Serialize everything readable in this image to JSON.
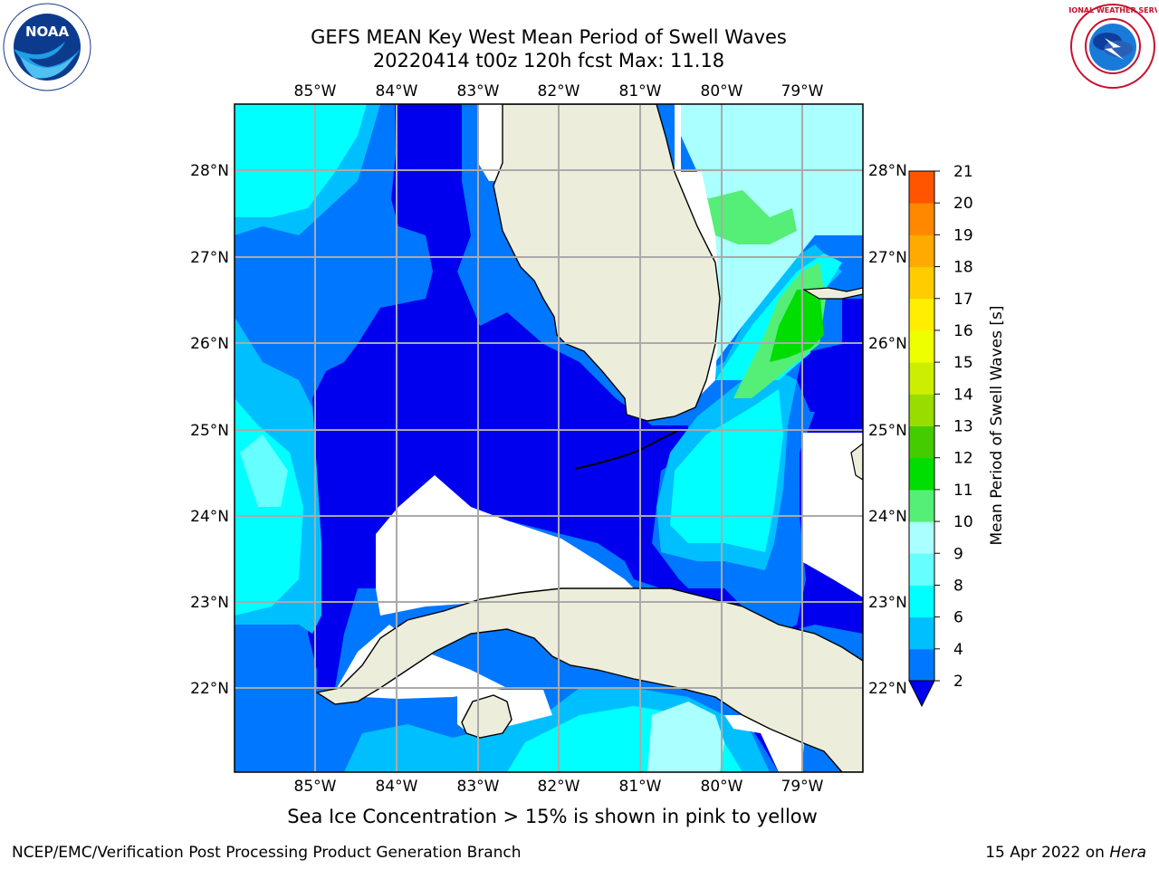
{
  "header": {
    "title_line1": "GEFS MEAN Key West Mean Period of Swell Waves",
    "title_line2": "20220414 t00z 120h fcst   Max: 11.18"
  },
  "logos": {
    "left": "NOAA",
    "right": "NATIONAL WEATHER SERVICE"
  },
  "map": {
    "lon_labels": [
      "85°W",
      "84°W",
      "83°W",
      "82°W",
      "81°W",
      "80°W",
      "79°W"
    ],
    "lat_labels": [
      "28°N",
      "27°N",
      "26°N",
      "25°N",
      "24°N",
      "23°N",
      "22°N"
    ],
    "lon_range": [
      -86.0,
      -78.25
    ],
    "lat_range": [
      21.0,
      28.75
    ]
  },
  "colorbar": {
    "label": "Mean Period of Swell Waves [s]",
    "ticks": [
      "2",
      "4",
      "6",
      "8",
      "9",
      "10",
      "11",
      "12",
      "13",
      "14",
      "15",
      "16",
      "17",
      "18",
      "19",
      "20",
      "21"
    ],
    "colors": [
      "#0077ff",
      "#00bfff",
      "#00ffff",
      "#66ffff",
      "#aaffff",
      "#55ee77",
      "#00dd00",
      "#44cc00",
      "#99dd00",
      "#ccee00",
      "#eeff00",
      "#ffee00",
      "#ffcc00",
      "#ffaa00",
      "#ff8800",
      "#ff5500",
      "#ff2200",
      "#ff0000"
    ]
  },
  "note": "Sea Ice Concentration > 15% is shown in pink to yellow",
  "footer": {
    "left": "NCEP/EMC/Verification Post Processing Product Generation Branch",
    "date": "15 Apr 2022 on ",
    "host": "Hera"
  }
}
